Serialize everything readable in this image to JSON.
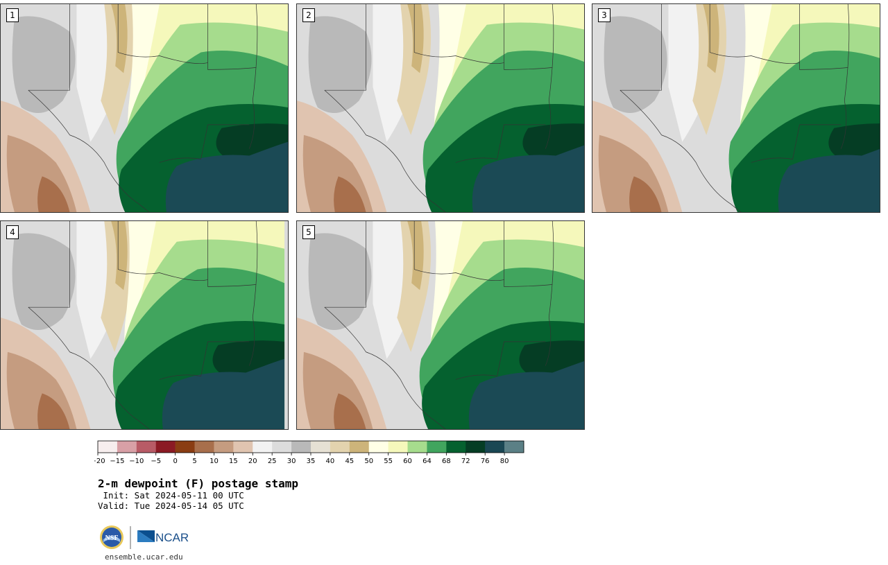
{
  "figure": {
    "title": "2-m dewpoint (F) postage stamp",
    "init": " Init: Sat 2024-05-11 00 UTC",
    "valid": "Valid: Tue 2024-05-14 05 UTC",
    "website": "ensemble.ucar.edu",
    "logos": {
      "left": "NSF",
      "right": "NCAR"
    }
  },
  "panels": [
    {
      "label": "1"
    },
    {
      "label": "2"
    },
    {
      "label": "3"
    },
    {
      "label": "4"
    },
    {
      "label": "5"
    }
  ],
  "colorbar": {
    "units": "F",
    "ticks": [
      "−20",
      "−15",
      "−10",
      "−5",
      "0",
      "5",
      "10",
      "15",
      "20",
      "25",
      "30",
      "35",
      "40",
      "45",
      "50",
      "55",
      "60",
      "64",
      "68",
      "72",
      "76",
      "80"
    ],
    "colors": [
      "#f7eeee",
      "#d8a0a6",
      "#b85b66",
      "#8b1a24",
      "#8a3d13",
      "#a86f4c",
      "#c59c80",
      "#e0c4b0",
      "#f2f2f2",
      "#dcdcdc",
      "#b9b9b9",
      "#e6e1d4",
      "#e3d3ae",
      "#cdb47a",
      "#ffffe6",
      "#f5f8bb",
      "#a6dc8d",
      "#41a55e",
      "#05612f",
      "#053d24",
      "#1a4753",
      "#5b8086"
    ]
  },
  "colors": {
    "background": "#ffffff",
    "ocean": "#1b4a55",
    "boundary": "#333333"
  }
}
